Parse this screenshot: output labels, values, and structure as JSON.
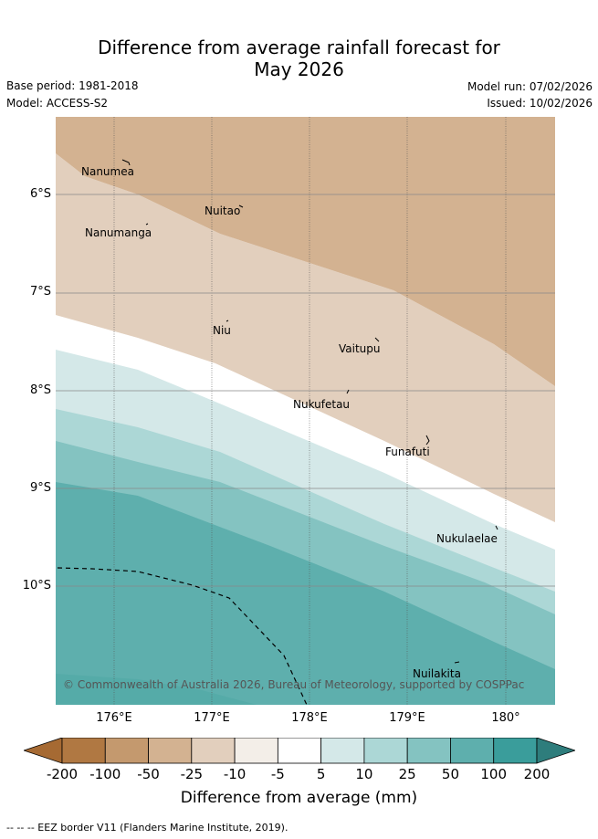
{
  "title": {
    "line1": "Difference from average rainfall forecast for",
    "line2": "May 2026"
  },
  "meta": {
    "base_period": "Base period: 1981-2018",
    "model": "Model: ACCESS-S2",
    "model_run": "Model run: 07/02/2026",
    "issued": "Issued: 10/02/2026"
  },
  "map": {
    "lat_labels": [
      "6°S",
      "7°S",
      "8°S",
      "9°S",
      "10°S"
    ],
    "lon_labels": [
      "176°E",
      "177°E",
      "178°E",
      "179°E",
      "180°"
    ],
    "places": [
      "Nanumea",
      "Nuitao",
      "Nanumanga",
      "Niu",
      "Vaitupu",
      "Nukufetau",
      "Funafuti",
      "Nukulaelae",
      "Nuilakita"
    ],
    "copyright": "© Commonwealth of Australia 2026, Bureau of Meteorology, supported by COSPPac"
  },
  "legend": {
    "ticks": [
      "-200",
      "-100",
      "-50",
      "-25",
      "-10",
      "-5",
      "5",
      "10",
      "25",
      "50",
      "100",
      "200"
    ],
    "colors": [
      "#a66a33",
      "#b07842",
      "#c4996e",
      "#d3b291",
      "#e2cfbd",
      "#f3eee8",
      "#ffffff",
      "#d4e8e8",
      "#acd7d6",
      "#84c3c1",
      "#5eafad",
      "#3a9d9b",
      "#2e7d7c"
    ],
    "title": "Difference from average (mm)"
  },
  "footnote": "--  --  -- EEZ border V11 (Flanders Marine Institute, 2019)."
}
